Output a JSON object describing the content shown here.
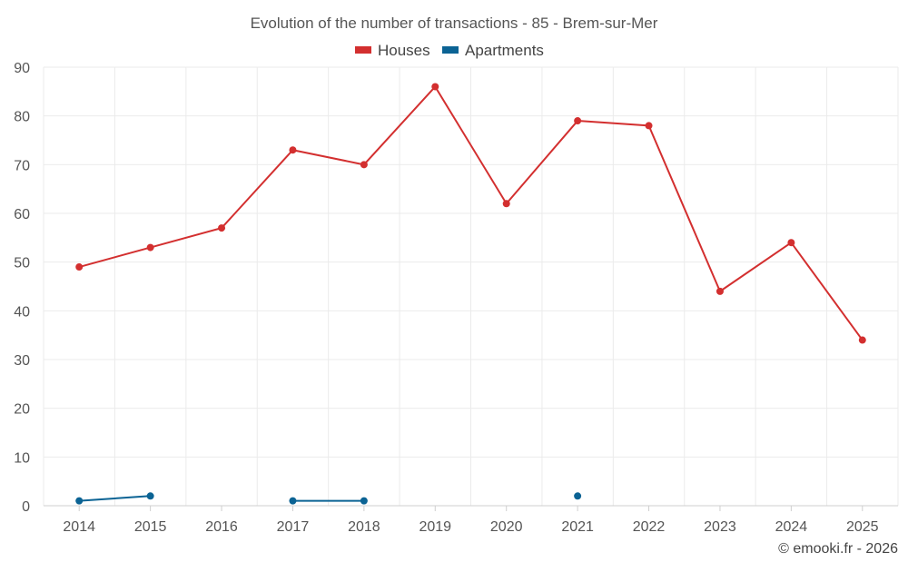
{
  "chart_data": {
    "type": "line",
    "title": "Evolution of the number of transactions - 85 - Brem-sur-Mer",
    "categories": [
      "2014",
      "2015",
      "2016",
      "2017",
      "2018",
      "2019",
      "2020",
      "2021",
      "2022",
      "2023",
      "2024",
      "2025"
    ],
    "series": [
      {
        "name": "Houses",
        "color": "#d32f2f",
        "values": [
          49,
          53,
          57,
          73,
          70,
          86,
          62,
          79,
          78,
          44,
          54,
          34
        ]
      },
      {
        "name": "Apartments",
        "color": "#0b6394",
        "values": [
          1,
          2,
          null,
          1,
          1,
          null,
          null,
          2,
          null,
          null,
          null,
          null
        ]
      }
    ],
    "ylim": [
      0,
      90
    ],
    "yticks": [
      0,
      10,
      20,
      30,
      40,
      50,
      60,
      70,
      80,
      90
    ],
    "xlabel": "",
    "ylabel": "",
    "grid": true,
    "legend_position": "top-center"
  },
  "credit": "© emooki.fr - 2026"
}
